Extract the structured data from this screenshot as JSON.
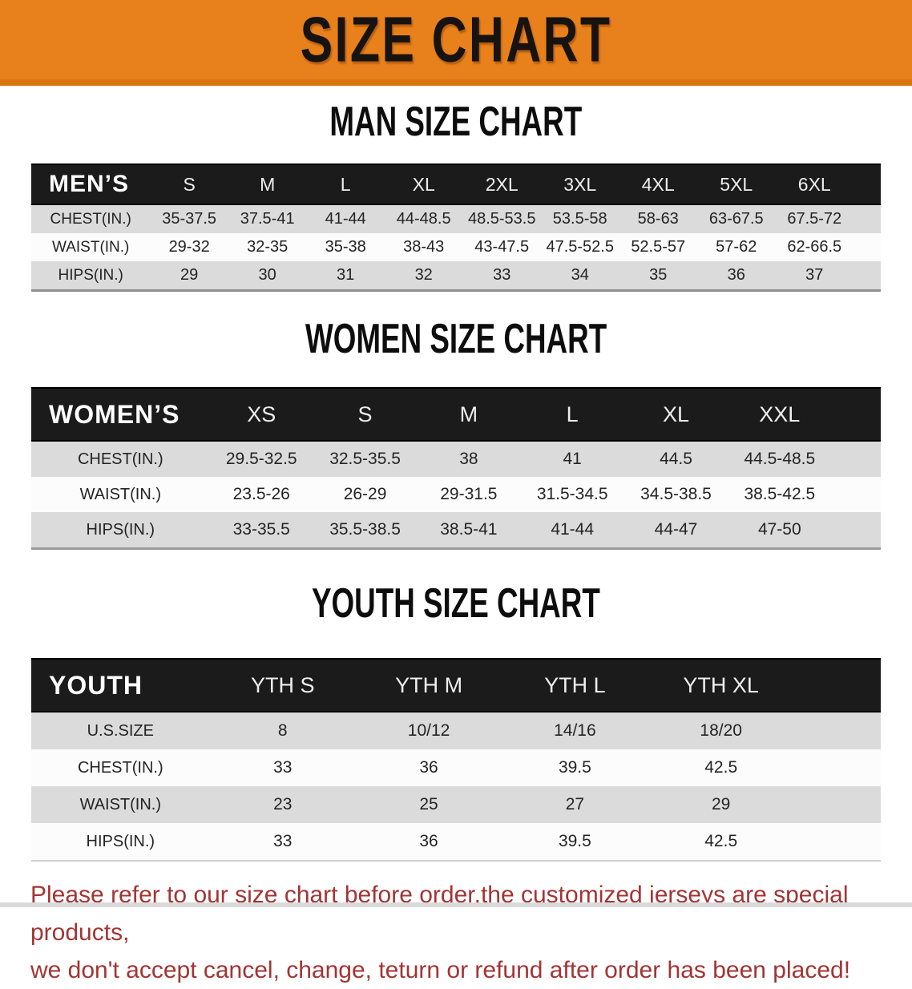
{
  "banner": {
    "title": "SIZE CHART",
    "bg_color": "#E8811C"
  },
  "sections": [
    {
      "id": "mens",
      "heading": "MAN SIZE CHART",
      "corner_label": "MEN’S",
      "columns": [
        "S",
        "M",
        "L",
        "XL",
        "2XL",
        "3XL",
        "4XL",
        "5XL",
        "6XL"
      ],
      "rows": [
        {
          "label": "CHEST(IN.)",
          "values": [
            "35-37.5",
            "37.5-41",
            "41-44",
            "44-48.5",
            "48.5-53.5",
            "53.5-58",
            "58-63",
            "63-67.5",
            "67.5-72"
          ]
        },
        {
          "label": "WAIST(IN.)",
          "values": [
            "29-32",
            "32-35",
            "35-38",
            "38-43",
            "43-47.5",
            "47.5-52.5",
            "52.5-57",
            "57-62",
            "62-66.5"
          ]
        },
        {
          "label": "HIPS(IN.)",
          "values": [
            "29",
            "30",
            "31",
            "32",
            "33",
            "34",
            "35",
            "36",
            "37"
          ]
        }
      ]
    },
    {
      "id": "womens",
      "heading": "WOMEN SIZE CHART",
      "corner_label": "WOMEN’S",
      "columns": [
        "XS",
        "S",
        "M",
        "L",
        "XL",
        "XXL"
      ],
      "rows": [
        {
          "label": "CHEST(IN.)",
          "values": [
            "29.5-32.5",
            "32.5-35.5",
            "38",
            "41",
            "44.5",
            "44.5-48.5"
          ]
        },
        {
          "label": "WAIST(IN.)",
          "values": [
            "23.5-26",
            "26-29",
            "29-31.5",
            "31.5-34.5",
            "34.5-38.5",
            "38.5-42.5"
          ]
        },
        {
          "label": "HIPS(IN.)",
          "values": [
            "33-35.5",
            "35.5-38.5",
            "38.5-41",
            "41-44",
            "44-47",
            "47-50"
          ]
        }
      ]
    },
    {
      "id": "youth",
      "heading": "YOUTH SIZE CHART",
      "corner_label": "YOUTH",
      "columns": [
        "YTH S",
        "YTH M",
        "YTH L",
        "YTH XL"
      ],
      "rows": [
        {
          "label": "U.S.SIZE",
          "values": [
            "8",
            "10/12",
            "14/16",
            "18/20"
          ]
        },
        {
          "label": "CHEST(IN.)",
          "values": [
            "33",
            "36",
            "39.5",
            "42.5"
          ]
        },
        {
          "label": "WAIST(IN.)",
          "values": [
            "23",
            "25",
            "27",
            "29"
          ]
        },
        {
          "label": "HIPS(IN.)",
          "values": [
            "33",
            "36",
            "39.5",
            "42.5"
          ]
        }
      ]
    }
  ],
  "footer": {
    "line1": "Please refer to our size chart before order,the customized jerseys are special products,",
    "line2": "we don't accept cancel, change, teturn or refund after order has been placed!",
    "text_color": "#A33434"
  }
}
